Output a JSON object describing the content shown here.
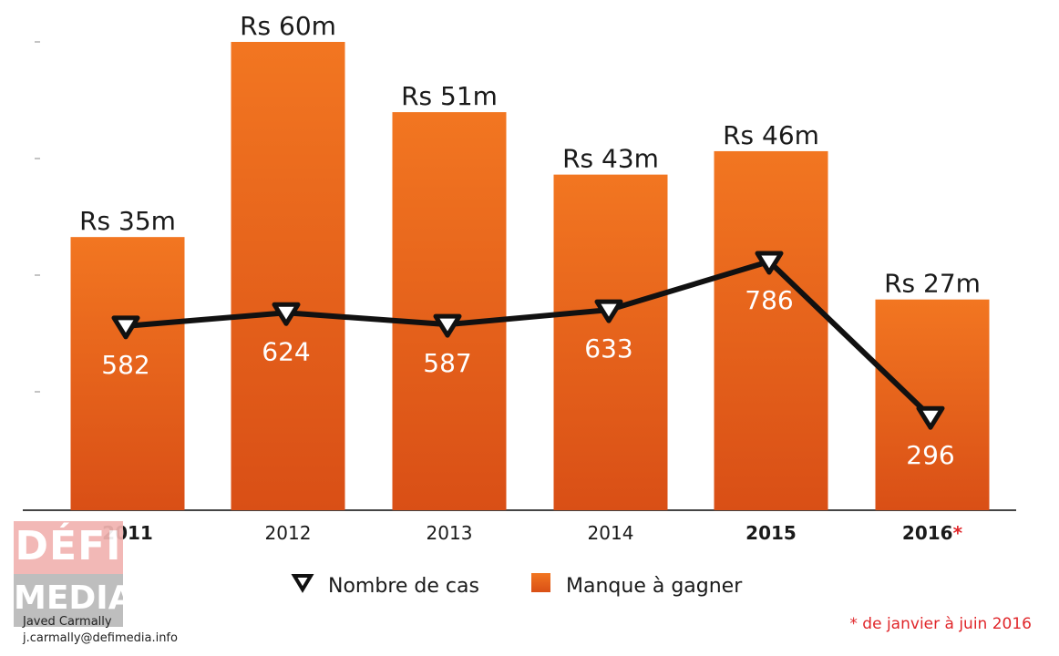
{
  "chart_data": {
    "type": "bar",
    "categories": [
      "2011",
      "2012",
      "2013",
      "2014",
      "2015",
      "2016"
    ],
    "category_suffix": {
      "2016": "*"
    },
    "bold_categories": [
      "2011",
      "2015",
      "2016"
    ],
    "series": [
      {
        "name": "Manque à gagner",
        "type": "bar",
        "values": [
          35,
          60,
          51,
          43,
          46,
          27
        ],
        "labels": [
          "Rs 35m",
          "Rs 60m",
          "Rs 51m",
          "Rs 43m",
          "Rs 46m",
          "Rs 27m"
        ],
        "color": "#ea5f1b"
      },
      {
        "name": "Nombre de cas",
        "type": "line",
        "values": [
          582,
          624,
          587,
          633,
          786,
          296
        ],
        "labels": [
          "582",
          "624",
          "587",
          "633",
          "786",
          "296"
        ],
        "color": "#111111",
        "marker": "down-triangle"
      }
    ],
    "bar_axis": {
      "min": 0,
      "max": 60
    },
    "line_axis": {
      "min": 0,
      "max": 1480
    },
    "legend": {
      "placement": "bottom-center"
    },
    "footnote": "* de janvier à juin 2016",
    "footnote_color": "#e0262a"
  },
  "branding": {
    "logo_top": "DÉFI",
    "logo_bottom": "MEDIA",
    "author": "Javed Carmally",
    "email": "j.carmally@defimedia.info"
  }
}
